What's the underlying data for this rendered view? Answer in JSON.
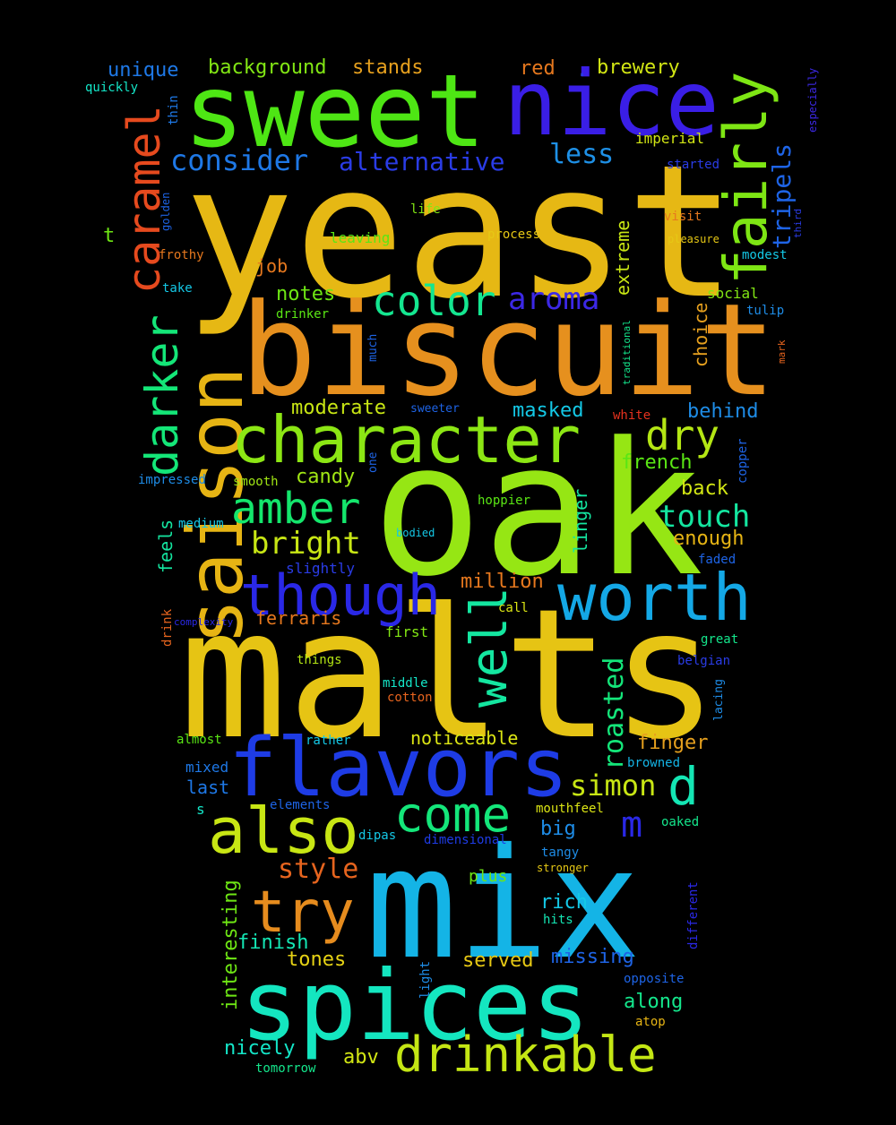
{
  "words": [
    {
      "text": "yeast",
      "color": "#e6b814"
    },
    {
      "text": "oak",
      "color": "#96e614"
    },
    {
      "text": "malts",
      "color": "#e6c414"
    },
    {
      "text": "mix",
      "color": "#14b4e6"
    },
    {
      "text": "biscuit",
      "color": "#e6901e"
    },
    {
      "text": "sweet",
      "color": "#4ee614"
    },
    {
      "text": "nice",
      "color": "#3a1ee6"
    },
    {
      "text": "spices",
      "color": "#14e6c0"
    },
    {
      "text": "saison",
      "color": "#e6b414"
    },
    {
      "text": "flavors",
      "color": "#1e3ce6"
    },
    {
      "text": "character",
      "color": "#8ce614"
    },
    {
      "text": "fairly",
      "color": "#7ee614"
    },
    {
      "text": "worth",
      "color": "#14a8e6"
    },
    {
      "text": "also",
      "color": "#c8e614"
    },
    {
      "text": "though",
      "color": "#2a28e6"
    },
    {
      "text": "drinkable",
      "color": "#c4e614"
    },
    {
      "text": "come",
      "color": "#14e67a"
    },
    {
      "text": "well",
      "color": "#14e6a0"
    },
    {
      "text": "try",
      "color": "#e68c1e"
    },
    {
      "text": "darker",
      "color": "#14e678"
    },
    {
      "text": "caramel",
      "color": "#e64a1e"
    },
    {
      "text": "color",
      "color": "#14e690"
    },
    {
      "text": "amber",
      "color": "#14e66c"
    },
    {
      "text": "d",
      "color": "#14e6b4"
    },
    {
      "text": "dry",
      "color": "#b4e614"
    },
    {
      "text": "aroma",
      "color": "#3c28e6"
    },
    {
      "text": "bright",
      "color": "#c8e614"
    },
    {
      "text": "touch",
      "color": "#14e6a0"
    },
    {
      "text": "consider",
      "color": "#1e78e6"
    },
    {
      "text": "alternative",
      "color": "#2a3ce6"
    },
    {
      "text": "simon",
      "color": "#c8e614"
    },
    {
      "text": "m",
      "color": "#2a28e6"
    },
    {
      "text": "style",
      "color": "#e6641e"
    },
    {
      "text": "roasted",
      "color": "#14e67a"
    },
    {
      "text": "less",
      "color": "#1e90e6"
    },
    {
      "text": "tripels",
      "color": "#1e64e6"
    },
    {
      "text": "unique",
      "color": "#1e78e6"
    },
    {
      "text": "background",
      "color": "#82e614"
    },
    {
      "text": "stands",
      "color": "#e6a01e"
    },
    {
      "text": "red",
      "color": "#e6781e"
    },
    {
      "text": "brewery",
      "color": "#d2e614"
    },
    {
      "text": "notes",
      "color": "#6ee614"
    },
    {
      "text": "moderate",
      "color": "#c8e614"
    },
    {
      "text": "masked",
      "color": "#14c8e6"
    },
    {
      "text": "behind",
      "color": "#1e8ce6"
    },
    {
      "text": "finger",
      "color": "#e6a01e"
    },
    {
      "text": "back",
      "color": "#d2e614"
    },
    {
      "text": "enough",
      "color": "#e6b414"
    },
    {
      "text": "french",
      "color": "#5ae614"
    },
    {
      "text": "candy",
      "color": "#a0e614"
    },
    {
      "text": "million",
      "color": "#e6781e"
    },
    {
      "text": "finish",
      "color": "#14e6b4"
    },
    {
      "text": "rich",
      "color": "#14c8e6"
    },
    {
      "text": "big",
      "color": "#1e8ce6"
    },
    {
      "text": "missing",
      "color": "#1e64e6"
    },
    {
      "text": "served",
      "color": "#e6c814"
    },
    {
      "text": "along",
      "color": "#14e68c"
    },
    {
      "text": "nicely",
      "color": "#14e6c8"
    },
    {
      "text": "abv",
      "color": "#d2e614"
    },
    {
      "text": "tones",
      "color": "#e6d214"
    },
    {
      "text": "ferraris",
      "color": "#e6781e"
    },
    {
      "text": "noticeable",
      "color": "#dce614"
    },
    {
      "text": "interesting",
      "color": "#6ee614"
    },
    {
      "text": "extreme",
      "color": "#c8e614"
    },
    {
      "text": "choice",
      "color": "#e6a01e"
    },
    {
      "text": "feels",
      "color": "#14e6a0"
    },
    {
      "text": "linger",
      "color": "#14e6a0"
    },
    {
      "text": "t",
      "color": "#6ee614"
    },
    {
      "text": "job",
      "color": "#e6781e"
    },
    {
      "text": "imperial",
      "color": "#d2e614"
    },
    {
      "text": "quickly",
      "color": "#14e6c8"
    },
    {
      "text": "thin",
      "color": "#1e78e6"
    },
    {
      "text": "especially",
      "color": "#3c28e6"
    },
    {
      "text": "started",
      "color": "#2a3ce6"
    },
    {
      "text": "golden",
      "color": "#1e64e6"
    },
    {
      "text": "third",
      "color": "#2a3ce6"
    },
    {
      "text": "visit",
      "color": "#e6781e"
    },
    {
      "text": "pleasure",
      "color": "#e6c814"
    },
    {
      "text": "life",
      "color": "#82e614"
    },
    {
      "text": "process",
      "color": "#e6c814"
    },
    {
      "text": "leaving",
      "color": "#5ae614"
    },
    {
      "text": "frothy",
      "color": "#e6781e"
    },
    {
      "text": "modest",
      "color": "#14c8e6"
    },
    {
      "text": "take",
      "color": "#14c8e6"
    },
    {
      "text": "social",
      "color": "#82e614"
    },
    {
      "text": "tulip",
      "color": "#1e8ce6"
    },
    {
      "text": "drinker",
      "color": "#5ae614"
    },
    {
      "text": "much",
      "color": "#1e64e6"
    },
    {
      "text": "traditional",
      "color": "#14e68c"
    },
    {
      "text": "mark",
      "color": "#e6641e"
    },
    {
      "text": "sweeter",
      "color": "#1e64e6"
    },
    {
      "text": "white",
      "color": "#e6321e"
    },
    {
      "text": "one",
      "color": "#1e64e6"
    },
    {
      "text": "impressed",
      "color": "#1e8ce6"
    },
    {
      "text": "smooth",
      "color": "#a0e614"
    },
    {
      "text": "copper",
      "color": "#1e64e6"
    },
    {
      "text": "hoppier",
      "color": "#5ae614"
    },
    {
      "text": "medium",
      "color": "#14c8e6"
    },
    {
      "text": "bodied",
      "color": "#14c8e6"
    },
    {
      "text": "slightly",
      "color": "#2a3ce6"
    },
    {
      "text": "faded",
      "color": "#1e64e6"
    },
    {
      "text": "drink",
      "color": "#e6641e"
    },
    {
      "text": "complexity",
      "color": "#2a28e6"
    },
    {
      "text": "call",
      "color": "#dce614"
    },
    {
      "text": "first",
      "color": "#82e614"
    },
    {
      "text": "great",
      "color": "#14e68c"
    },
    {
      "text": "things",
      "color": "#b4e614"
    },
    {
      "text": "belgian",
      "color": "#2a3ce6"
    },
    {
      "text": "middle",
      "color": "#14e6c8"
    },
    {
      "text": "cotton",
      "color": "#e6641e"
    },
    {
      "text": "lacing",
      "color": "#1e8ce6"
    },
    {
      "text": "almost",
      "color": "#5ae614"
    },
    {
      "text": "rather",
      "color": "#14c8e6"
    },
    {
      "text": "mixed",
      "color": "#1e78e6"
    },
    {
      "text": "browned",
      "color": "#14b4e6"
    },
    {
      "text": "last",
      "color": "#1e78e6"
    },
    {
      "text": "s",
      "color": "#14e6c8"
    },
    {
      "text": "elements",
      "color": "#1e64e6"
    },
    {
      "text": "mouthfeel",
      "color": "#dce614"
    },
    {
      "text": "oaked",
      "color": "#14e68c"
    },
    {
      "text": "dipas",
      "color": "#14c8e6"
    },
    {
      "text": "dimensional",
      "color": "#1e3ce6"
    },
    {
      "text": "tangy",
      "color": "#1e8ce6"
    },
    {
      "text": "plus",
      "color": "#6ee614"
    },
    {
      "text": "stronger",
      "color": "#e6c814"
    },
    {
      "text": "different",
      "color": "#2a28e6"
    },
    {
      "text": "hits",
      "color": "#14e6b4"
    },
    {
      "text": "light",
      "color": "#1e8ce6"
    },
    {
      "text": "opposite",
      "color": "#1e64e6"
    },
    {
      "text": "atop",
      "color": "#e6b414"
    },
    {
      "text": "tomorrow",
      "color": "#14e68c"
    },
    {
      "text": ".",
      "color": "#2a3ce6"
    }
  ]
}
